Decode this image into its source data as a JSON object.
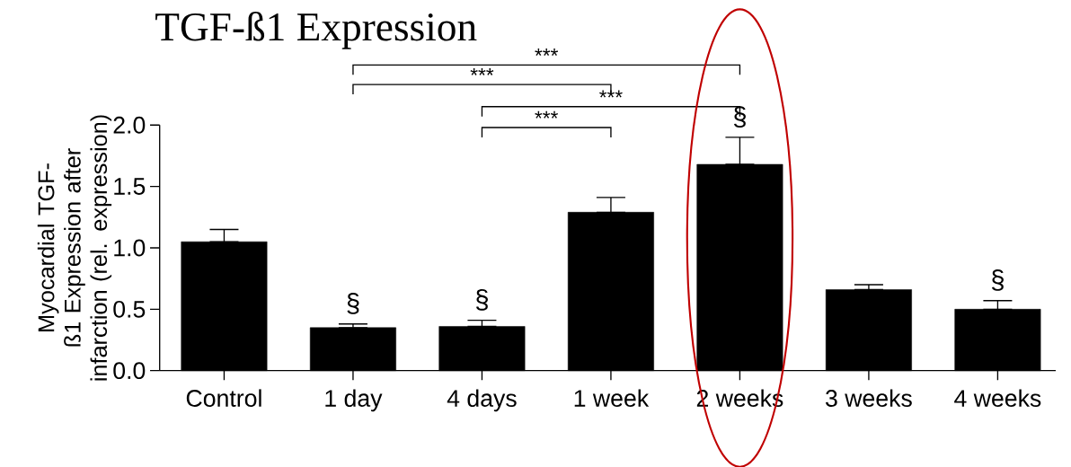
{
  "chart_data": {
    "type": "bar",
    "title": "TGF-ß1 Expression",
    "ylabel": "Myocardial TGF-ß1 Expression after infarction (rel. expression)",
    "categories": [
      "Control",
      "1 day",
      "4 days",
      "1 week",
      "2 weeks",
      "3 weeks",
      "4 weeks"
    ],
    "values": [
      1.05,
      0.35,
      0.36,
      1.29,
      1.68,
      0.66,
      0.5
    ],
    "errors": [
      [
        1.05,
        1.15
      ],
      [
        0.35,
        0.38
      ],
      [
        0.36,
        0.41
      ],
      [
        1.29,
        1.41
      ],
      [
        1.68,
        1.9
      ],
      [
        0.66,
        0.7
      ],
      [
        0.5,
        0.57
      ]
    ],
    "color": "#000000",
    "ylim": [
      0,
      2.0
    ],
    "yticks": [
      {
        "value": 0,
        "label": "0.0"
      },
      {
        "value": 0.5,
        "label": "0.5"
      },
      {
        "value": 1.0,
        "label": "1.0"
      },
      {
        "value": 1.5,
        "label": "1.5"
      },
      {
        "value": 2.0,
        "label": "2.0"
      }
    ],
    "grid": false,
    "annotations": [
      "***",
      "***",
      "***",
      "***",
      {
        "text": "§",
        "x": "1 day",
        "y": 0.38
      },
      {
        "text": "§",
        "x": "4 days",
        "y": 0.41
      },
      {
        "text": "§",
        "x": "2 weeks",
        "y": 1.9
      },
      {
        "text": "§",
        "x": "4 weeks",
        "y": 0.57
      }
    ]
  }
}
